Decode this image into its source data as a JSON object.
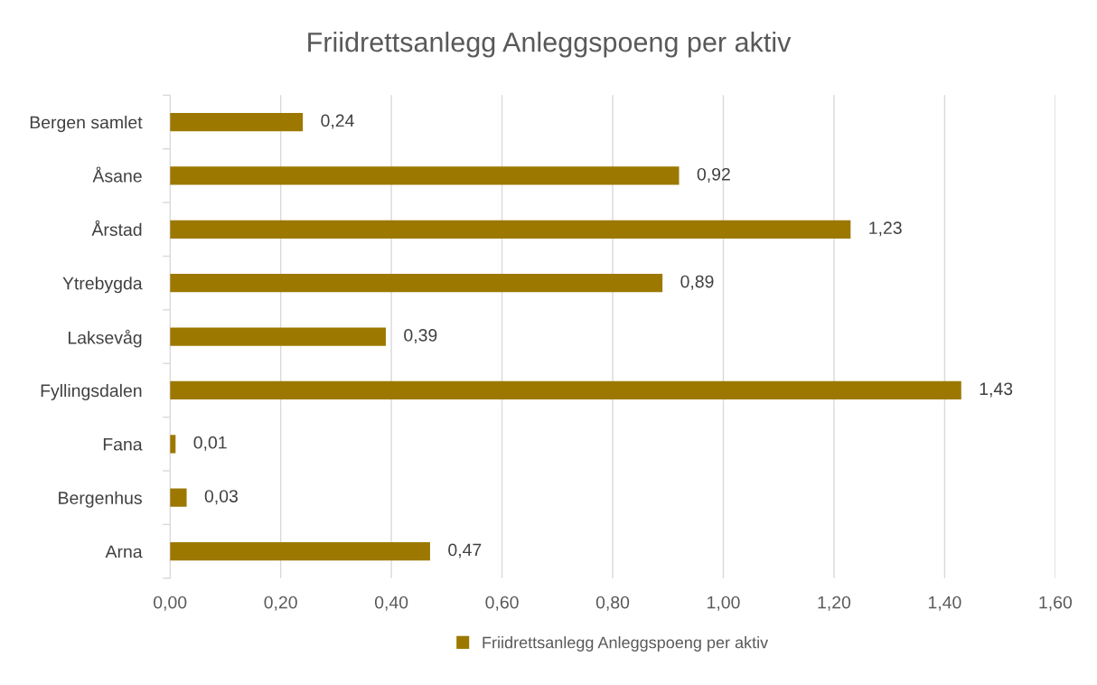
{
  "chart_data": {
    "type": "bar",
    "orientation": "horizontal",
    "title": "Friidrettsanlegg Anleggspoeng per aktiv",
    "categories": [
      "Bergen samlet",
      "Åsane",
      "Årstad",
      "Ytrebygda",
      "Laksevåg",
      "Fyllingsdalen",
      "Fana",
      "Bergenhus",
      "Arna"
    ],
    "series": [
      {
        "name": "Friidrettsanlegg Anleggspoeng per aktiv",
        "color": "#9c7800",
        "values": [
          0.24,
          0.92,
          1.23,
          0.89,
          0.39,
          1.43,
          0.01,
          0.03,
          0.47
        ],
        "value_labels": [
          "0,24",
          "0,92",
          "1,23",
          "0,89",
          "0,39",
          "1,43",
          "0,01",
          "0,03",
          "0,47"
        ]
      }
    ],
    "xlim": [
      0,
      1.6
    ],
    "xticks": [
      {
        "value": 0,
        "label": "0,00"
      },
      {
        "value": 0.2,
        "label": "0,20"
      },
      {
        "value": 0.4,
        "label": "0,40"
      },
      {
        "value": 0.6,
        "label": "0,60"
      },
      {
        "value": 0.8,
        "label": "0,80"
      },
      {
        "value": 1.0,
        "label": "1,00"
      },
      {
        "value": 1.2,
        "label": "1,20"
      },
      {
        "value": 1.4,
        "label": "1,40"
      },
      {
        "value": 1.6,
        "label": "1,60"
      }
    ],
    "grid": "x",
    "legend": "bottom"
  }
}
